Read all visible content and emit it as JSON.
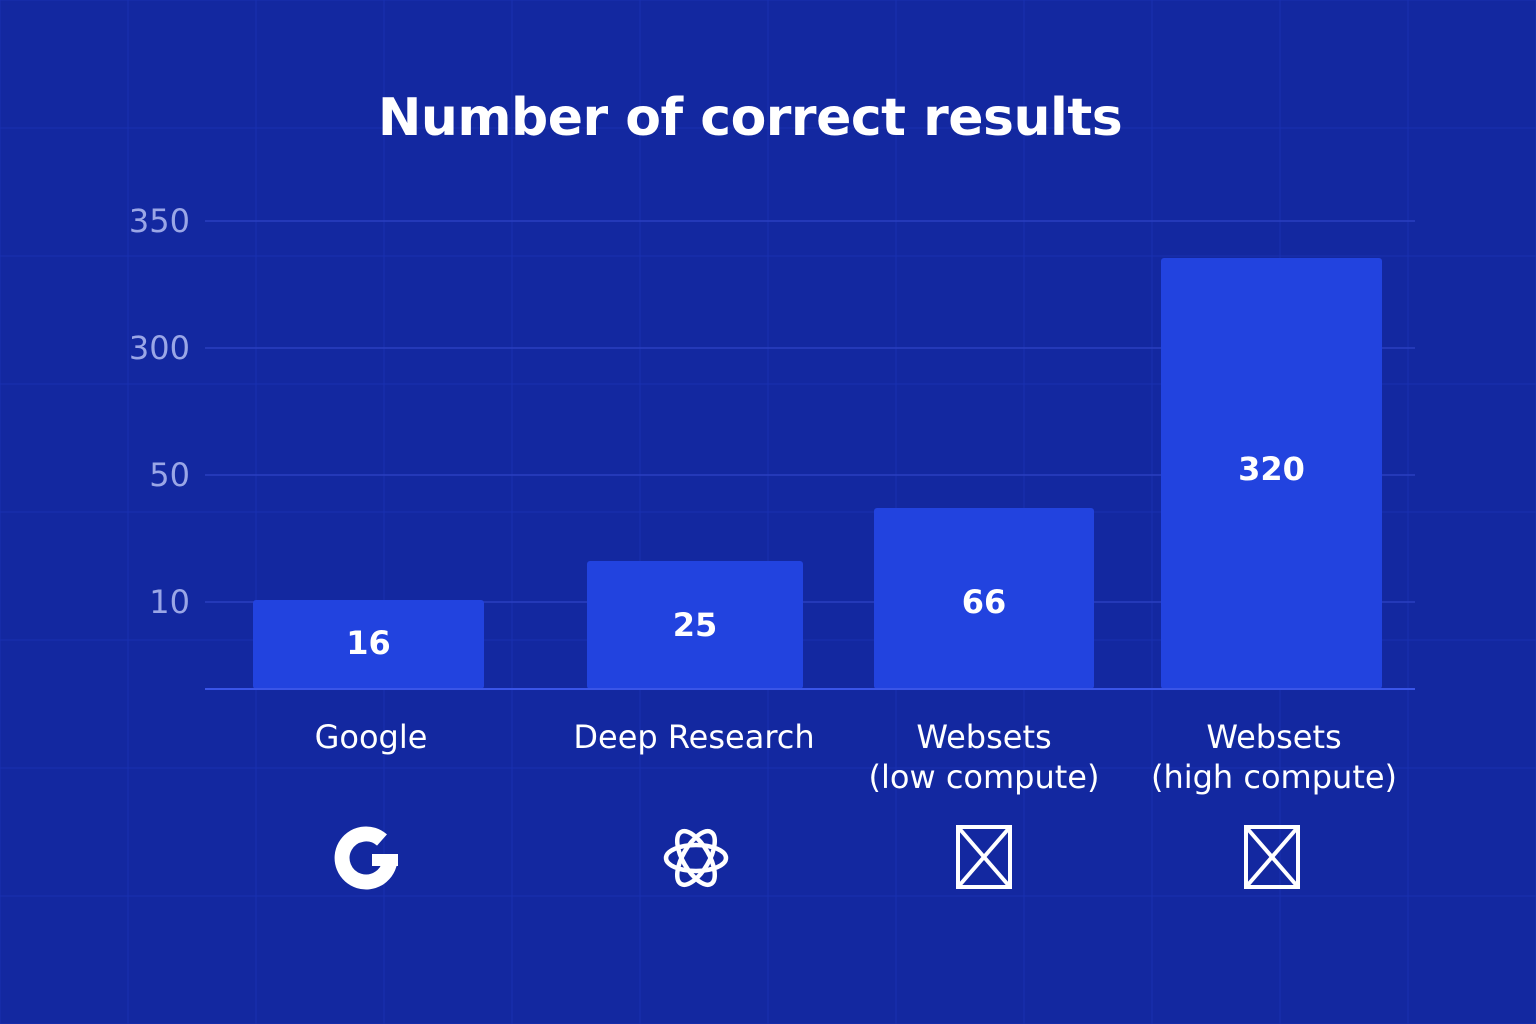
{
  "chart_data": {
    "type": "bar",
    "title": "Number of correct results",
    "xlabel": "",
    "ylabel": "",
    "ylim": [
      0,
      350
    ],
    "y_ticks": [
      "10",
      "50",
      "300",
      "350"
    ],
    "grid": true,
    "categories": [
      [
        "Google"
      ],
      [
        "Deep Research"
      ],
      [
        "Websets",
        "(low compute)"
      ],
      [
        "Websets",
        "(high compute)"
      ]
    ],
    "values": [
      16,
      25,
      66,
      320
    ],
    "value_labels": [
      "16",
      "25",
      "66",
      "320"
    ],
    "icons": [
      "google-icon",
      "openai-icon",
      "websets-icon",
      "websets-icon"
    ]
  },
  "colors": {
    "background": "#1328a0",
    "bar": "#2243df",
    "text": "#ffffff",
    "tick_text": "#9aa6e6",
    "grid": "#2a3fc0",
    "axis": "#3a55e8"
  }
}
